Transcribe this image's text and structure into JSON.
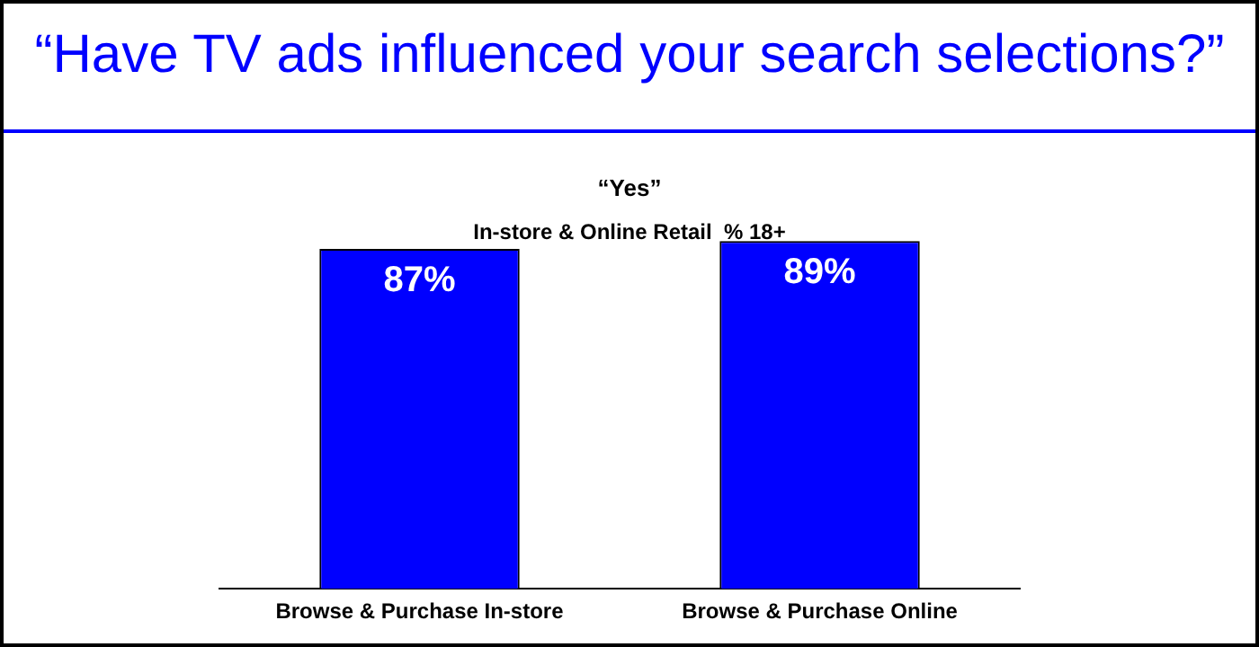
{
  "chart_data": {
    "type": "bar",
    "title": "“Have TV ads influenced your search selections?”",
    "subtitle": "“Yes”",
    "annotations": [
      "In-store & Online Retail  % 18+"
    ],
    "categories": [
      "Browse & Purchase In-store",
      "Browse & Purchase Online"
    ],
    "values": [
      87,
      89
    ],
    "color": "#0000ff",
    "data_labels": true,
    "value_labels": [
      "87%",
      "89%"
    ],
    "grid": false,
    "legend": false,
    "tick_labels": "x"
  }
}
